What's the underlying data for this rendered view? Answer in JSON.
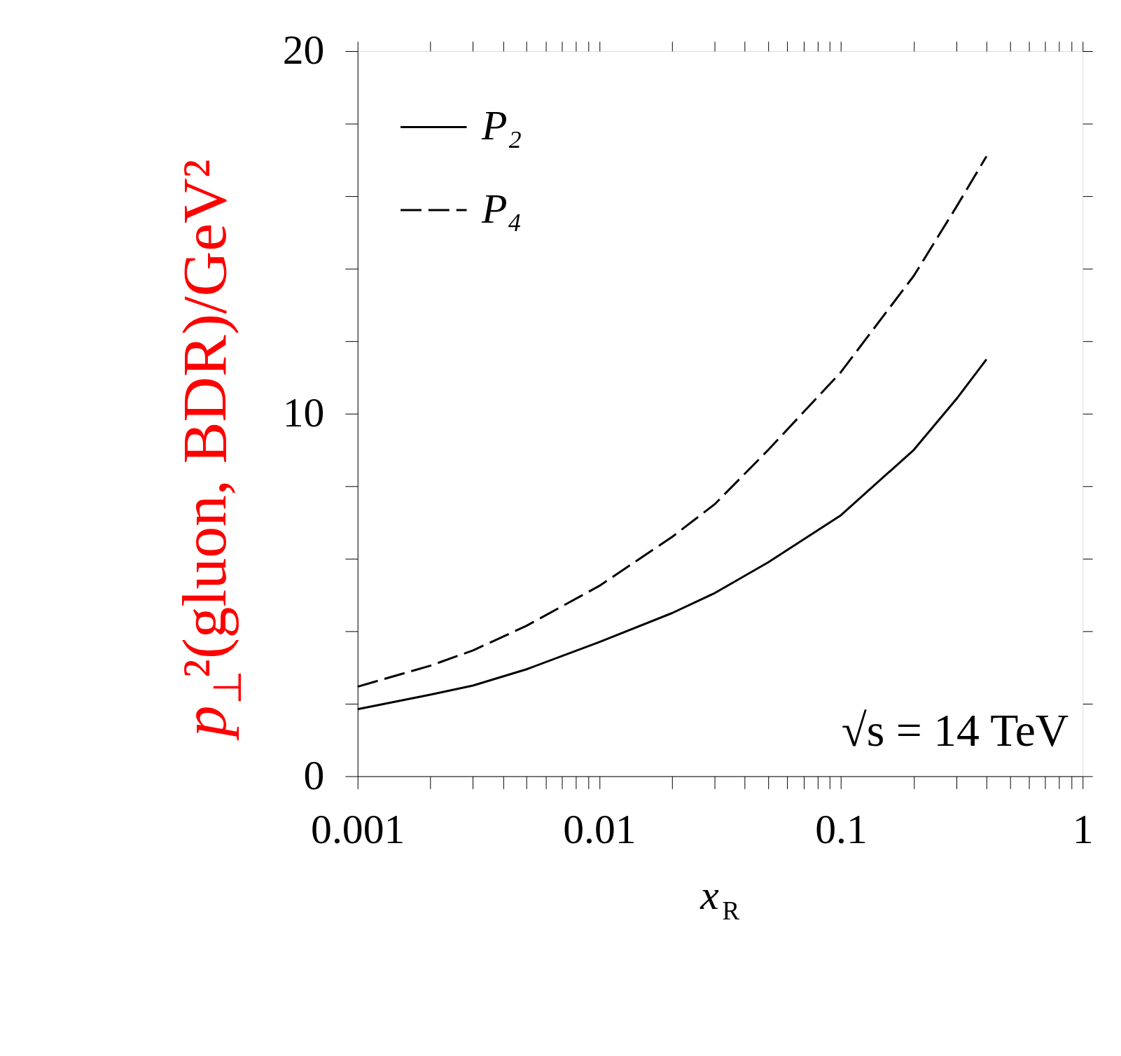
{
  "chart_data": {
    "type": "line",
    "xlabel": "x$_{R}$",
    "ylabel": "p$_{⊥}$²(gluon, BDR)/GeV²",
    "log": "x",
    "xlim": [
      0.001,
      1
    ],
    "ylim": [
      0,
      20
    ],
    "xticks": [
      0.001,
      {
        "value": 0.002,
        "label": null
      },
      {
        "value": 0.003,
        "label": null
      },
      {
        "value": 0.004,
        "label": null
      },
      {
        "value": 0.005,
        "label": null
      },
      {
        "value": 0.006,
        "label": null
      },
      {
        "value": 0.007,
        "label": null
      },
      {
        "value": 0.008,
        "label": null
      },
      {
        "value": 0.009,
        "label": null
      },
      0.01,
      {
        "value": 0.02,
        "label": null
      },
      {
        "value": 0.03,
        "label": null
      },
      {
        "value": 0.04,
        "label": null
      },
      {
        "value": 0.05,
        "label": null
      },
      {
        "value": 0.06,
        "label": null
      },
      {
        "value": 0.07,
        "label": null
      },
      {
        "value": 0.08,
        "label": null
      },
      {
        "value": 0.09,
        "label": null
      },
      0.1,
      {
        "value": 0.2,
        "label": null
      },
      {
        "value": 0.3,
        "label": null
      },
      {
        "value": 0.4,
        "label": null
      },
      {
        "value": 0.5,
        "label": null
      },
      {
        "value": 0.6,
        "label": null
      },
      {
        "value": 0.7,
        "label": null
      },
      {
        "value": 0.8,
        "label": null
      },
      {
        "value": 0.9,
        "label": null
      },
      1
    ],
    "yticks": [
      0,
      {
        "value": 2,
        "label": null
      },
      {
        "value": 4,
        "label": null
      },
      {
        "value": 6,
        "label": null
      },
      {
        "value": 8,
        "label": null
      },
      10,
      {
        "value": 12,
        "label": null
      },
      {
        "value": 14,
        "label": null
      },
      {
        "value": 16,
        "label": null
      },
      {
        "value": 18,
        "label": null
      },
      20
    ],
    "grid": false,
    "legend": "top left",
    "marker": "none",
    "series": [
      {
        "name": "P₂",
        "color": "#000000",
        "line_style": "solid",
        "x": [
          0.001,
          0.002,
          0.003,
          0.005,
          0.01,
          0.02,
          0.03,
          0.05,
          0.1,
          0.2,
          0.3,
          0.4
        ],
        "values": [
          1.85,
          2.25,
          2.5,
          2.95,
          3.7,
          4.5,
          5.05,
          5.9,
          7.2,
          9.0,
          10.4,
          11.5
        ]
      },
      {
        "name": "P₄",
        "color": "#000000",
        "line_style": "dashed",
        "x": [
          0.001,
          0.002,
          0.003,
          0.005,
          0.01,
          0.02,
          0.03,
          0.05,
          0.1,
          0.2,
          0.3,
          0.4
        ],
        "values": [
          2.47,
          3.05,
          3.47,
          4.15,
          5.25,
          6.6,
          7.5,
          9.0,
          11.15,
          13.8,
          15.7,
          17.1
        ]
      }
    ],
    "annotations": [
      "√s = 14 TeV"
    ]
  }
}
